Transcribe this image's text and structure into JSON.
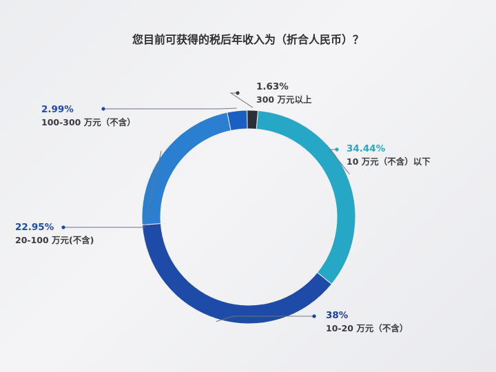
{
  "chart_data": {
    "type": "pie",
    "title": "您目前可获得的税后年收入为（折合人民币）？",
    "donut": true,
    "categories": [
      "10 万元（不含）以下",
      "10-20 万元（不含）",
      "20-100 万元(不含)",
      "100-300 万元（不含）",
      "300 万元以上"
    ],
    "values": [
      34.44,
      38,
      22.95,
      2.99,
      1.63
    ],
    "value_labels": [
      "34.44%",
      "38%",
      "22.95%",
      "2.99%",
      "1.63%"
    ],
    "colors": [
      "#27a7c6",
      "#1e4aa8",
      "#2a7fd0",
      "#1c5fc2",
      "#2c2f36"
    ],
    "legend": "none"
  }
}
